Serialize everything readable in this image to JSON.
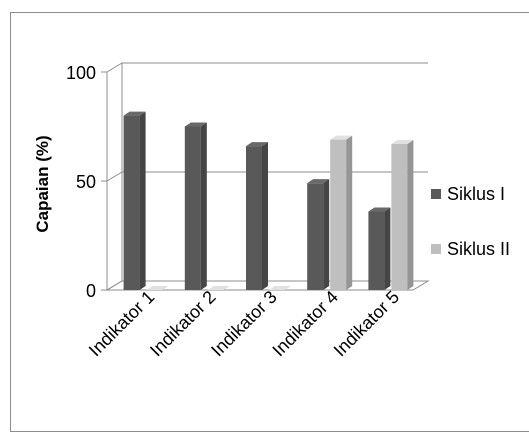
{
  "chart_data": {
    "type": "bar",
    "categories": [
      "Indikator 1",
      "Indikator 2",
      "Indikator 3",
      "Indikator 4",
      "Indikator 5"
    ],
    "series": [
      {
        "name": "Siklus I",
        "values": [
          80,
          75,
          66,
          49,
          36
        ],
        "color": "#595959"
      },
      {
        "name": "Siklus II",
        "values": [
          0,
          0,
          0,
          69,
          67
        ],
        "color": "#bfbfbf"
      }
    ],
    "title": "",
    "xlabel": "",
    "ylabel": "Capaian (%)",
    "ylim": [
      0,
      100
    ],
    "yticks": [
      "0",
      "50",
      "100"
    ],
    "grid": true,
    "legend_position": "right",
    "style": "3d-clustered-column"
  }
}
